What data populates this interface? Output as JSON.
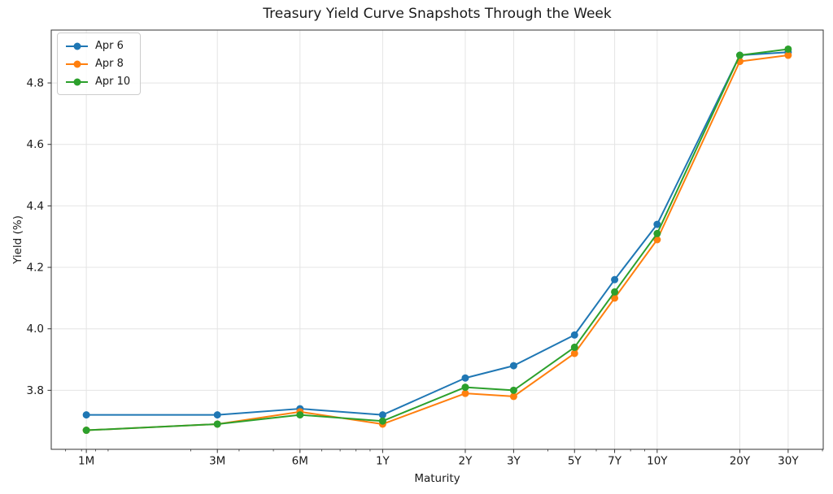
{
  "chart_data": {
    "type": "line",
    "title": "Treasury Yield Curve Snapshots Through the Week",
    "xlabel": "Maturity",
    "ylabel": "Yield (%)",
    "x_scale": "log",
    "grid": true,
    "legend_position": "upper left",
    "categories": [
      "1M",
      "3M",
      "6M",
      "1Y",
      "2Y",
      "3Y",
      "5Y",
      "7Y",
      "10Y",
      "20Y",
      "30Y"
    ],
    "x_years": [
      0.0833,
      0.25,
      0.5,
      1,
      2,
      3,
      5,
      7,
      10,
      20,
      30
    ],
    "y_ticks": [
      "3.8",
      "4.0",
      "4.2",
      "4.4",
      "4.6",
      "4.8"
    ],
    "y_tick_values": [
      3.8,
      4.0,
      4.2,
      4.4,
      4.6,
      4.8
    ],
    "series": [
      {
        "name": "Apr 6",
        "color": "#1f77b4",
        "values": [
          3.72,
          3.72,
          3.74,
          3.72,
          3.84,
          3.88,
          3.98,
          4.16,
          4.34,
          4.89,
          4.9
        ]
      },
      {
        "name": "Apr 8",
        "color": "#ff7f0e",
        "values": [
          3.67,
          3.69,
          3.73,
          3.69,
          3.79,
          3.78,
          3.92,
          4.1,
          4.29,
          4.87,
          4.89
        ]
      },
      {
        "name": "Apr 10",
        "color": "#2ca02c",
        "values": [
          3.67,
          3.69,
          3.72,
          3.7,
          3.81,
          3.8,
          3.94,
          4.12,
          4.31,
          4.89,
          4.91
        ]
      }
    ],
    "colors": {
      "grid": "#e4e4e4",
      "axis": "#333333",
      "text": "#1a1a1a",
      "background": "#ffffff"
    }
  }
}
